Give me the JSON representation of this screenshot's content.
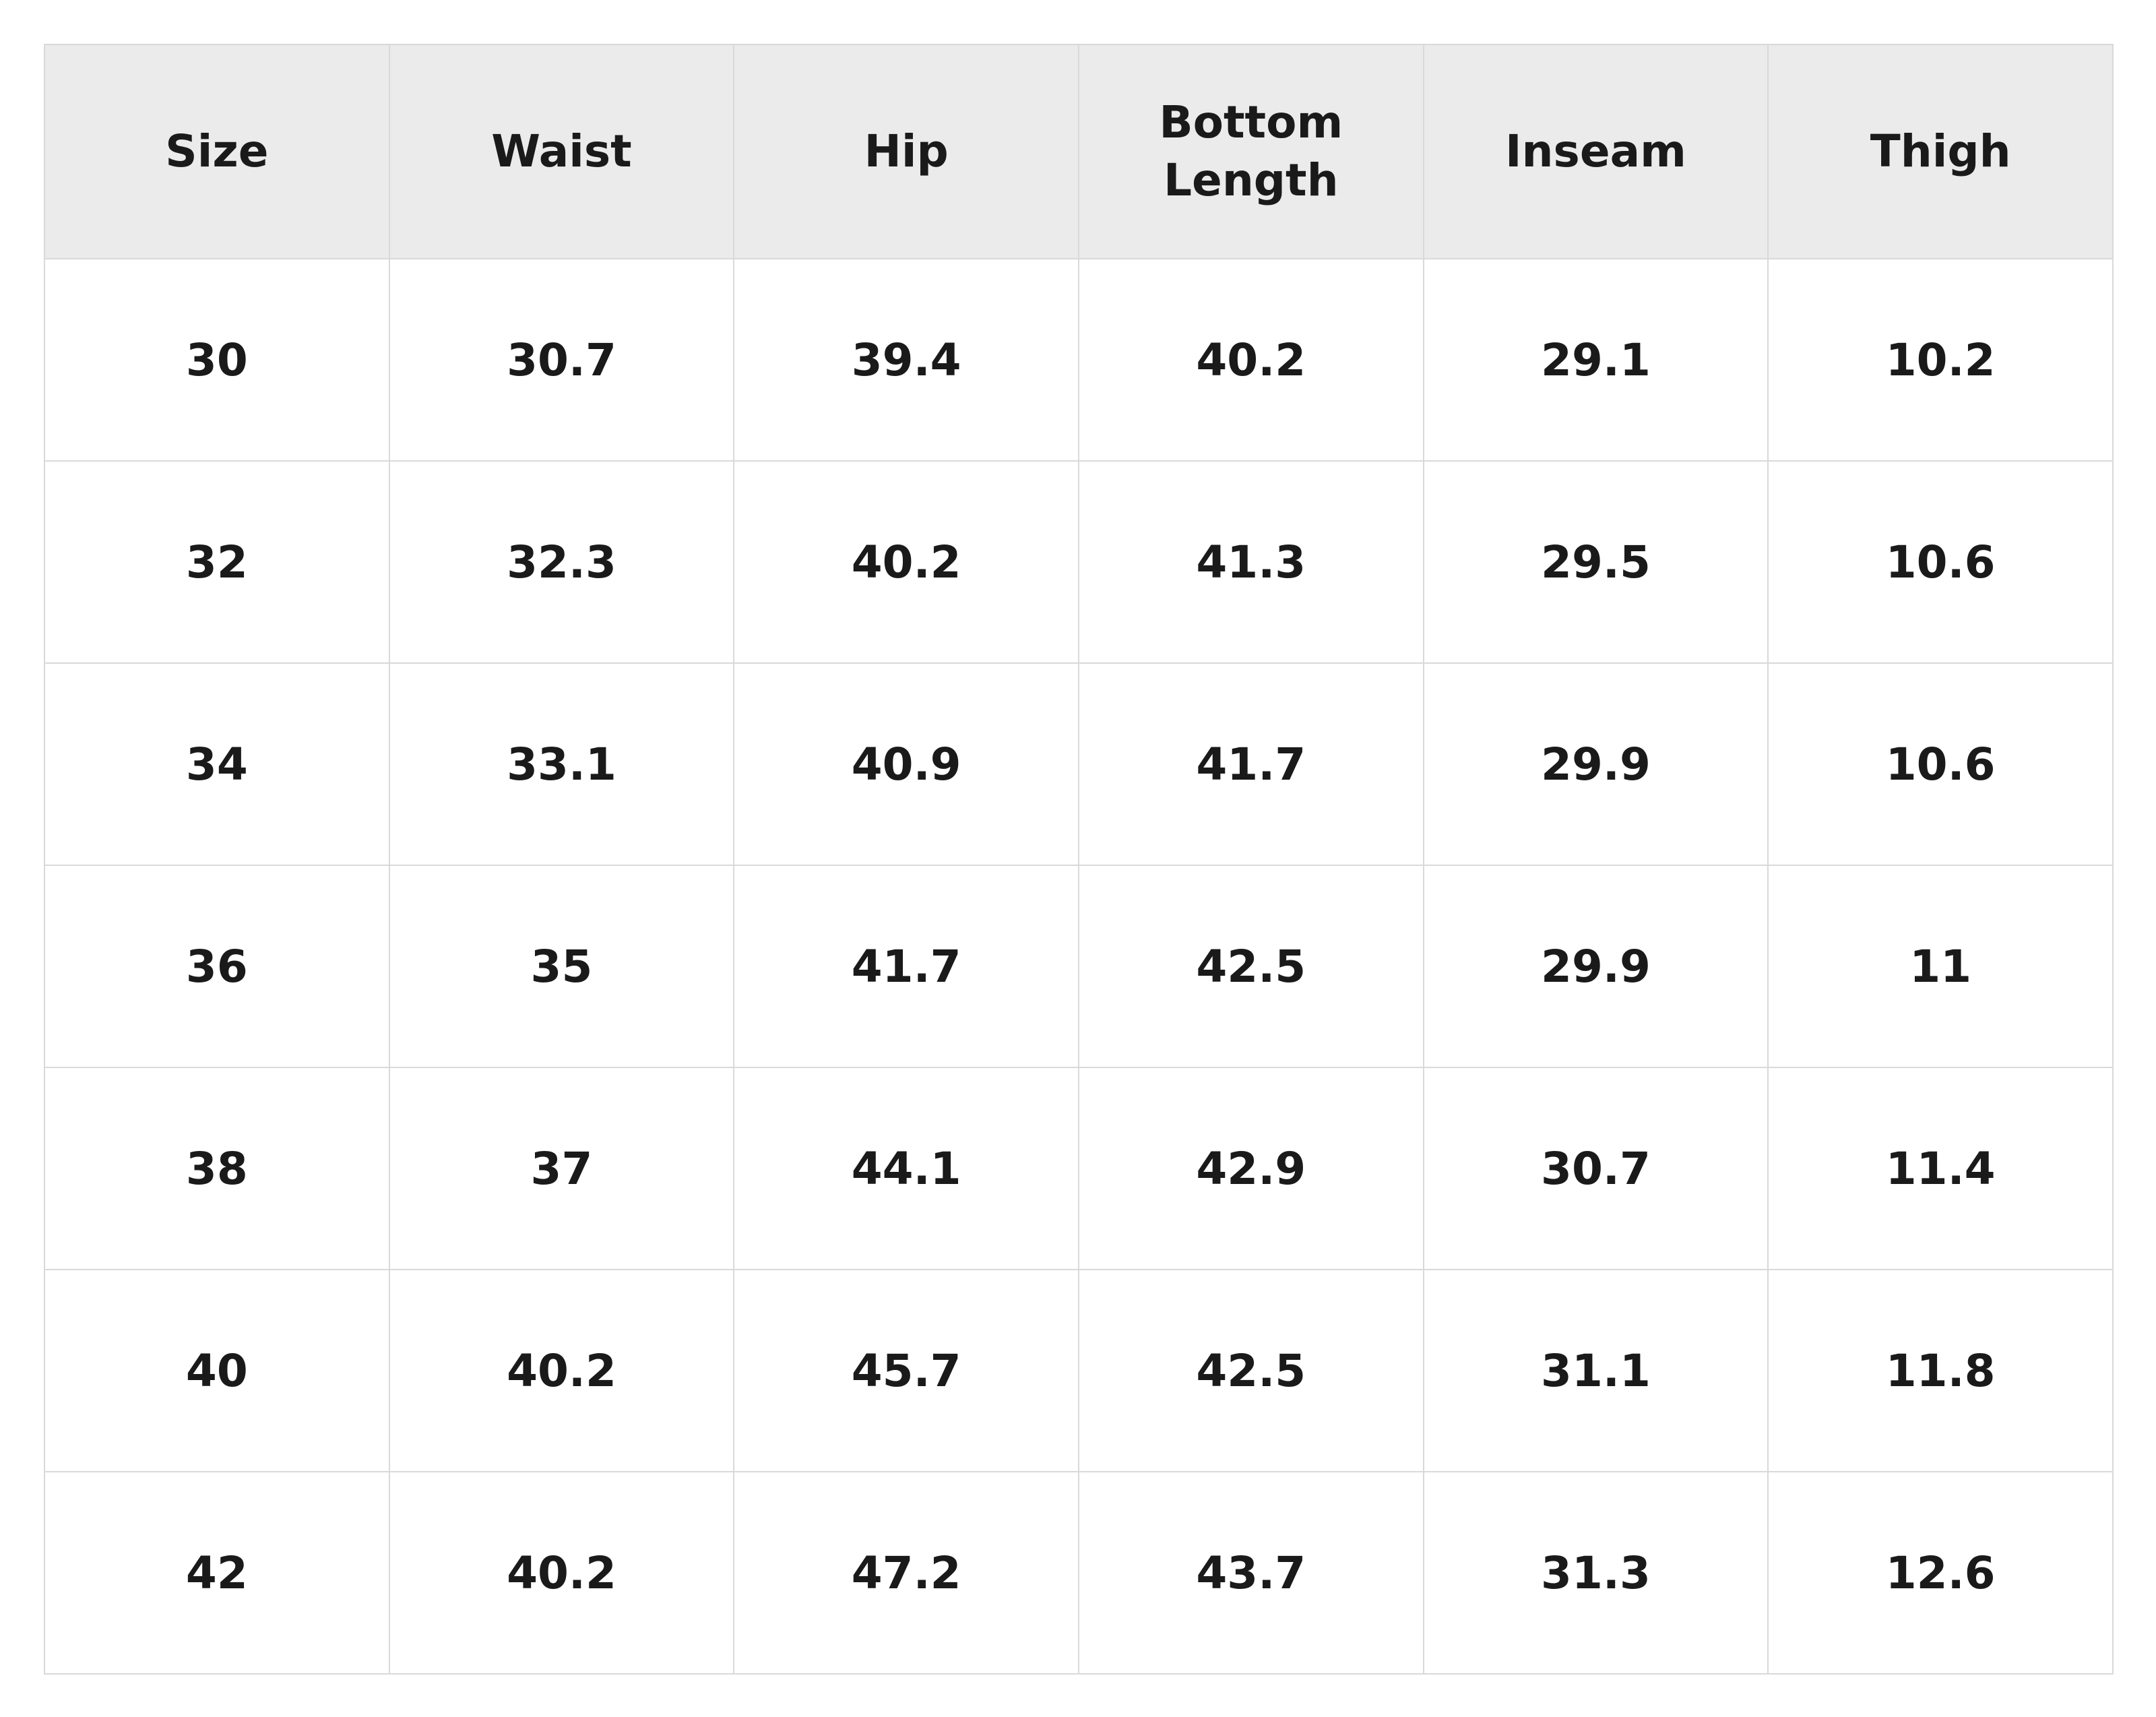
{
  "table": {
    "header": [
      "Size",
      "Waist",
      "Hip",
      "Bottom Length",
      "Inseam",
      "Thigh"
    ],
    "rows": [
      [
        30,
        30.7,
        39.4,
        40.2,
        29.1,
        10.2
      ],
      [
        32,
        32.3,
        40.2,
        41.3,
        29.5,
        10.6
      ],
      [
        34,
        33.1,
        40.9,
        41.7,
        29.9,
        10.6
      ],
      [
        36,
        35,
        41.7,
        42.5,
        29.9,
        11
      ],
      [
        38,
        37,
        44.1,
        42.9,
        30.7,
        11.4
      ],
      [
        40,
        40.2,
        45.7,
        42.5,
        31.1,
        11.8
      ],
      [
        42,
        40.2,
        47.2,
        43.7,
        31.3,
        12.6
      ]
    ]
  }
}
